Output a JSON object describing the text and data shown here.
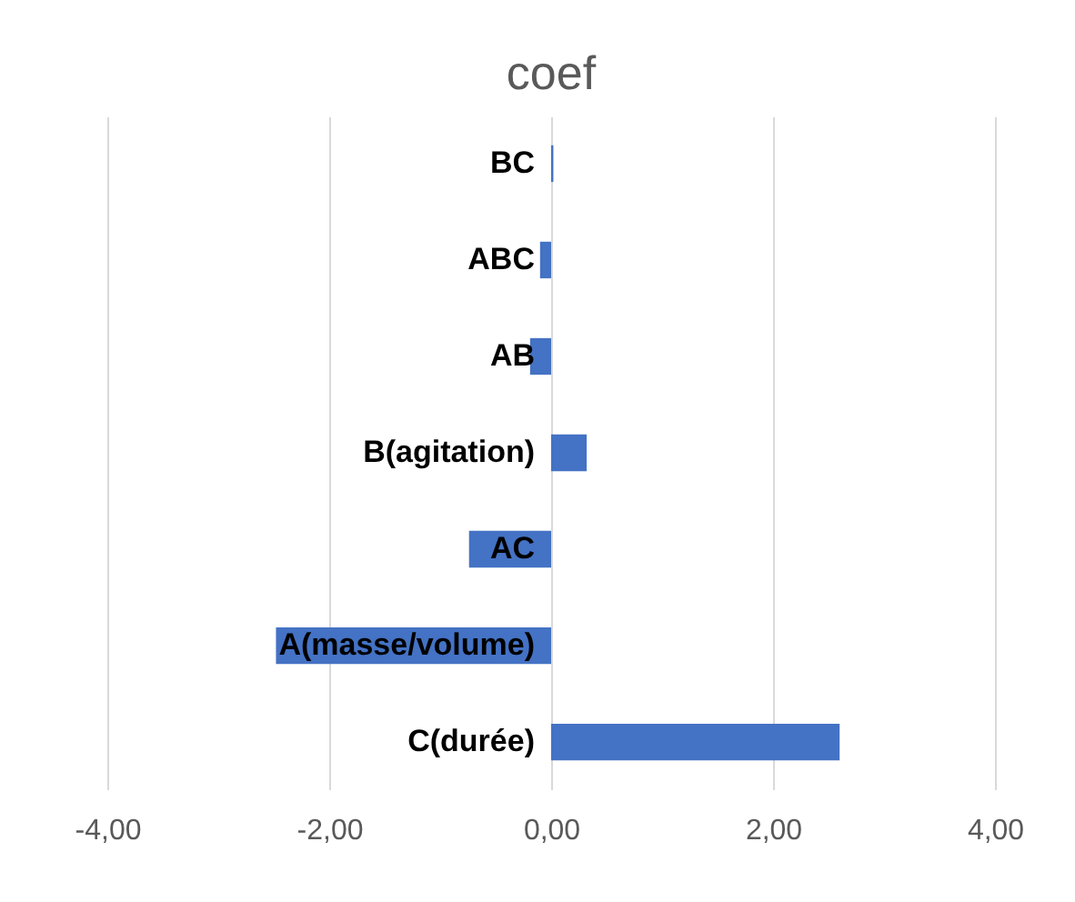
{
  "chart_data": {
    "type": "bar",
    "orientation": "horizontal",
    "title": "coef",
    "categories": [
      "BC",
      "ABC",
      "AB",
      "B(agitation)",
      "AC",
      "A(masse/volume)",
      "C(durée)"
    ],
    "values": [
      0.02,
      -0.1,
      -0.19,
      0.32,
      -0.74,
      -2.48,
      2.6
    ],
    "color": "#4472c4",
    "xlim": [
      -4,
      4
    ],
    "xticks": [
      {
        "value": -4,
        "label": "-4,00"
      },
      {
        "value": -2,
        "label": "-2,00"
      },
      {
        "value": 0,
        "label": "0,00"
      },
      {
        "value": 2,
        "label": "2,00"
      },
      {
        "value": 4,
        "label": "4,00"
      }
    ],
    "grid": "x"
  }
}
